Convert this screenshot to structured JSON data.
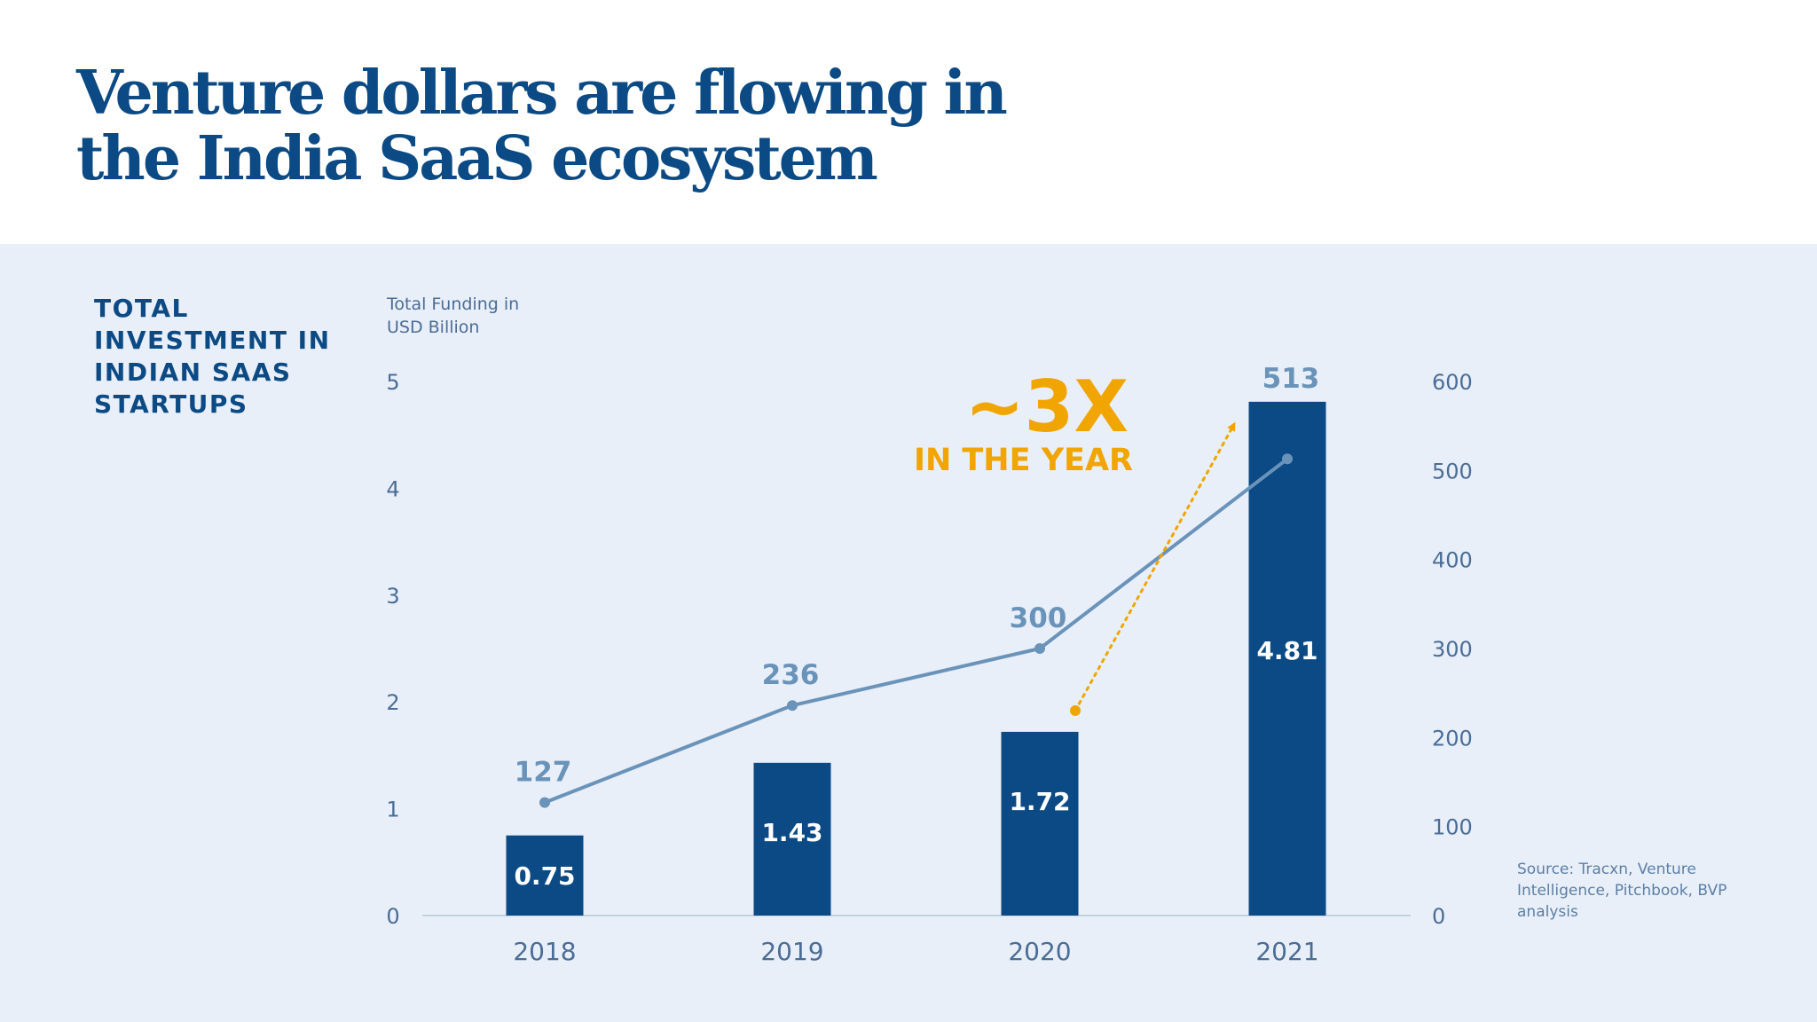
{
  "title": {
    "line1": "Venture dollars are flowing in",
    "line2": "the India SaaS ecosystem"
  },
  "side_label": {
    "line1": "TOTAL",
    "line2": "INVESTMENT IN",
    "line3": "INDIAN SAAS",
    "line4": "STARTUPS"
  },
  "source": {
    "line1": "Source: Tracxn, Venture",
    "line2": "Intelligence, Pitchbook, BVP",
    "line3": "analysis"
  },
  "callout": {
    "big": "~3X",
    "small": "IN THE YEAR"
  },
  "colors": {
    "title": "#0b4a84",
    "bar": "#0b4a84",
    "line": "#6a93ba",
    "callout": "#f0a500",
    "panel": "#e9eff8",
    "axis_text": "#4a6d96"
  },
  "chart_data": {
    "type": "bar",
    "categories": [
      "2018",
      "2019",
      "2020",
      "2021"
    ],
    "ylabel_line1": "Total Funding in",
    "ylabel_line2": "USD Billion",
    "ylim": [
      0,
      5
    ],
    "yticks": [
      "0",
      "1",
      "2",
      "3",
      "4",
      "5"
    ],
    "y2lim": [
      0,
      600
    ],
    "y2ticks": [
      "0",
      "100",
      "200",
      "300",
      "400",
      "500",
      "600"
    ],
    "grid": false,
    "series": [
      {
        "type": "bar",
        "axis": "left",
        "values": [
          0.75,
          1.43,
          1.72,
          4.81
        ],
        "labels": [
          "0.75",
          "1.43",
          "1.72",
          "4.81"
        ]
      },
      {
        "type": "line",
        "axis": "right",
        "values": [
          127,
          236,
          300,
          513
        ],
        "labels": [
          "127",
          "236",
          "300",
          "513"
        ]
      }
    ]
  }
}
